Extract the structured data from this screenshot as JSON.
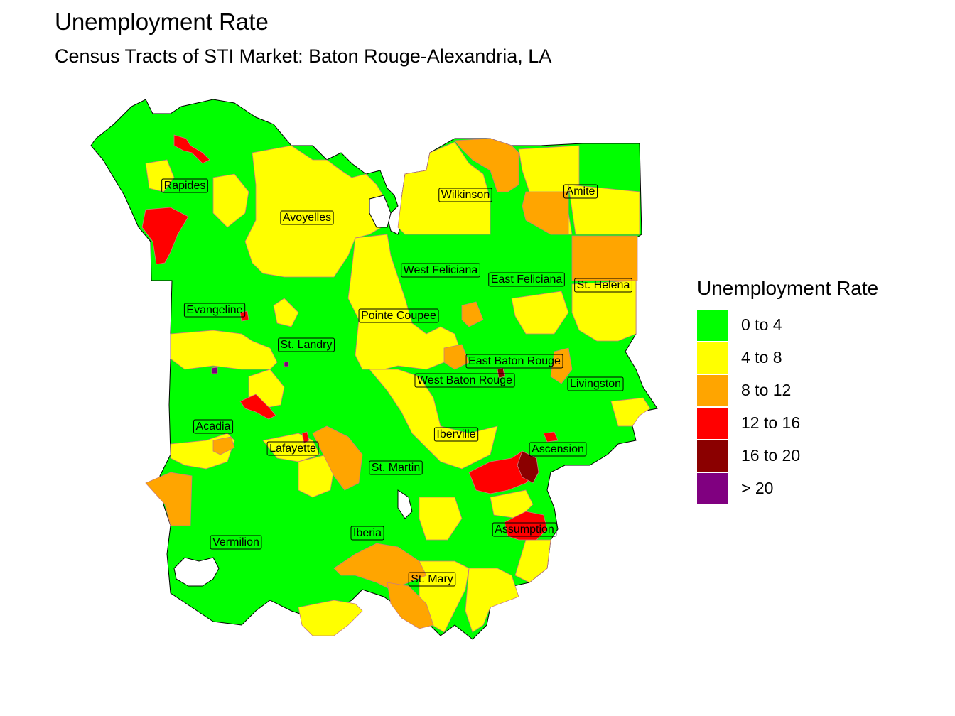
{
  "title": "Unemployment Rate",
  "subtitle": "Census Tracts of STI Market: Baton Rouge-Alexandria, LA",
  "legend": {
    "title": "Unemployment Rate",
    "items": [
      {
        "label": "0 to 4",
        "color": "#00ff00"
      },
      {
        "label": "4 to 8",
        "color": "#ffff00"
      },
      {
        "label": "8 to 12",
        "color": "#ffa500"
      },
      {
        "label": "12 to 16",
        "color": "#ff0000"
      },
      {
        "label": "16 to 20",
        "color": "#8b0000"
      },
      {
        "label": "> 20",
        "color": "#800080"
      }
    ]
  },
  "parishes": [
    "Rapides",
    "Avoyelles",
    "Wilkinson",
    "Amite",
    "West Feliciana",
    "East Feliciana",
    "St. Helena",
    "Evangeline",
    "Pointe Coupee",
    "St. Landry",
    "East Baton Rouge",
    "West Baton Rouge",
    "Livingston",
    "Acadia",
    "Iberville",
    "Lafayette",
    "Ascension",
    "St. Martin",
    "Assumption",
    "Iberia",
    "Vermilion",
    "St. Mary"
  ]
}
